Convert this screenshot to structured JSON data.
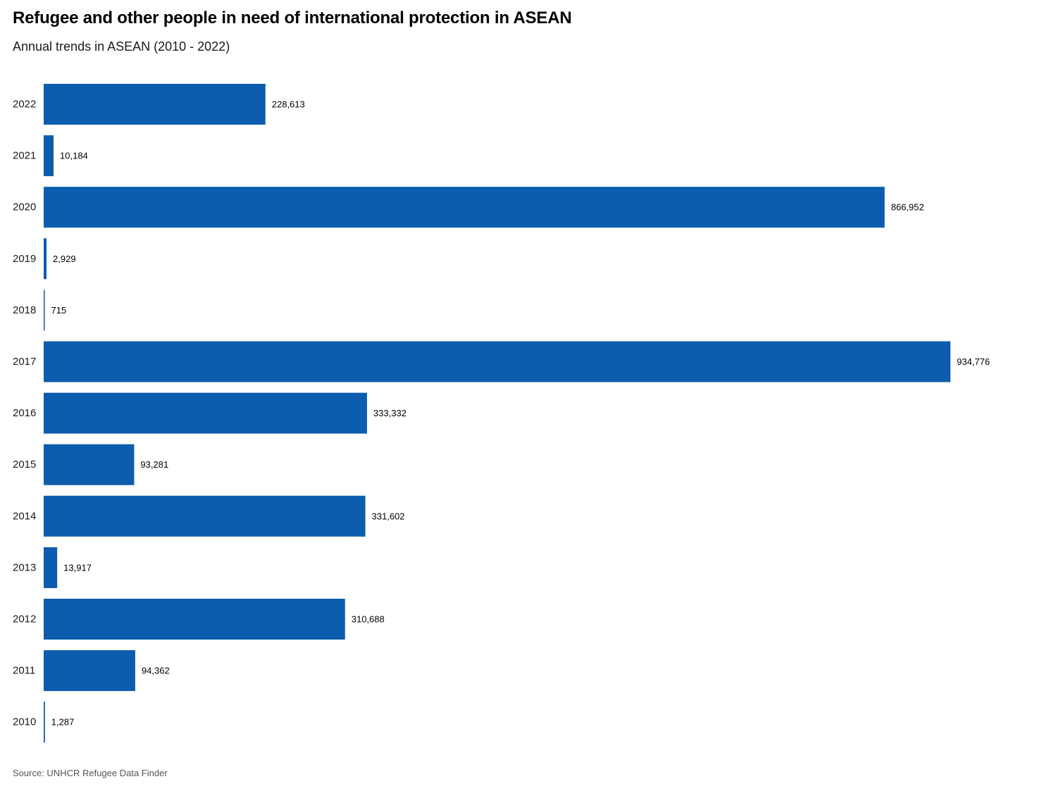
{
  "title": "Refugee and other people in need of international protection in ASEAN",
  "subtitle": "Annual trends in ASEAN (2010 - 2022)",
  "source": "Source: UNHCR Refugee Data Finder",
  "colors": {
    "bar": "#0c5dae",
    "label": "#000000",
    "tick": "#1a1a1a"
  },
  "chart_data": {
    "type": "bar",
    "orientation": "horizontal",
    "categories": [
      "2022",
      "2021",
      "2020",
      "2019",
      "2018",
      "2017",
      "2016",
      "2015",
      "2014",
      "2013",
      "2012",
      "2011",
      "2010"
    ],
    "values": [
      228613,
      10184,
      866952,
      2929,
      715,
      934776,
      333332,
      93281,
      331602,
      13917,
      310688,
      94362,
      1287
    ],
    "value_labels": [
      "228,613",
      "10,184",
      "866,952",
      "2,929",
      "715",
      "934,776",
      "333,332",
      "93,281",
      "331,602",
      "13,917",
      "310,688",
      "94,362",
      "1,287"
    ],
    "xlim": [
      0,
      934776
    ],
    "grid": false,
    "legend": "none"
  }
}
